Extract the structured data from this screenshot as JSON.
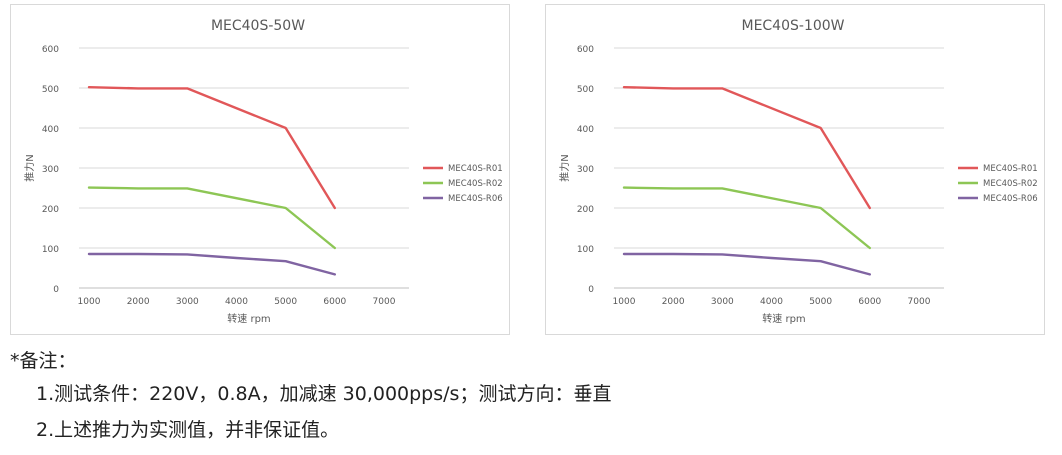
{
  "chart_data": [
    {
      "type": "line",
      "title": "MEC40S-50W",
      "xlabel": "转速 rpm",
      "ylabel": "推力N",
      "x_ticks": [
        "1000",
        "2000",
        "3000",
        "4000",
        "5000",
        "6000",
        "7000"
      ],
      "y_ticks": [
        "0",
        "100",
        "200",
        "300",
        "400",
        "500",
        "600"
      ],
      "xlim": [
        1000,
        7000
      ],
      "ylim": [
        0,
        600
      ],
      "grid": "horizontal",
      "legend": "right",
      "series": [
        {
          "name": "MEC40S-R01",
          "color": "#e15759",
          "x": [
            1000,
            2000,
            3000,
            5000,
            6000
          ],
          "y": [
            502,
            499,
            499,
            400,
            200
          ]
        },
        {
          "name": "MEC40S-R02",
          "color": "#8dc655",
          "x": [
            1000,
            2000,
            3000,
            5000,
            6000
          ],
          "y": [
            251,
            249,
            249,
            200,
            100
          ]
        },
        {
          "name": "MEC40S-R06",
          "color": "#8064a2",
          "x": [
            1000,
            2000,
            3000,
            4000,
            5000,
            6000
          ],
          "y": [
            85,
            85,
            84,
            75,
            67,
            34
          ]
        }
      ]
    },
    {
      "type": "line",
      "title": "MEC40S-100W",
      "xlabel": "转速 rpm",
      "ylabel": "推力N",
      "x_ticks": [
        "1000",
        "2000",
        "3000",
        "4000",
        "5000",
        "6000",
        "7000"
      ],
      "y_ticks": [
        "0",
        "100",
        "200",
        "300",
        "400",
        "500",
        "600"
      ],
      "xlim": [
        1000,
        7000
      ],
      "ylim": [
        0,
        600
      ],
      "grid": "horizontal",
      "legend": "right",
      "series": [
        {
          "name": "MEC40S-R01",
          "color": "#e15759",
          "x": [
            1000,
            2000,
            3000,
            5000,
            6000
          ],
          "y": [
            502,
            499,
            499,
            400,
            200
          ]
        },
        {
          "name": "MEC40S-R02",
          "color": "#8dc655",
          "x": [
            1000,
            2000,
            3000,
            5000,
            6000
          ],
          "y": [
            251,
            249,
            249,
            200,
            100
          ]
        },
        {
          "name": "MEC40S-R06",
          "color": "#8064a2",
          "x": [
            1000,
            2000,
            3000,
            4000,
            5000,
            6000
          ],
          "y": [
            85,
            85,
            84,
            75,
            67,
            34
          ]
        }
      ]
    }
  ],
  "notes": {
    "heading": "*备注：",
    "items": [
      "1.测试条件：220V，0.8A，加减速 30,000pps/s；测试方向：垂直",
      "2.上述推力为实测值，并非保证值。"
    ]
  }
}
